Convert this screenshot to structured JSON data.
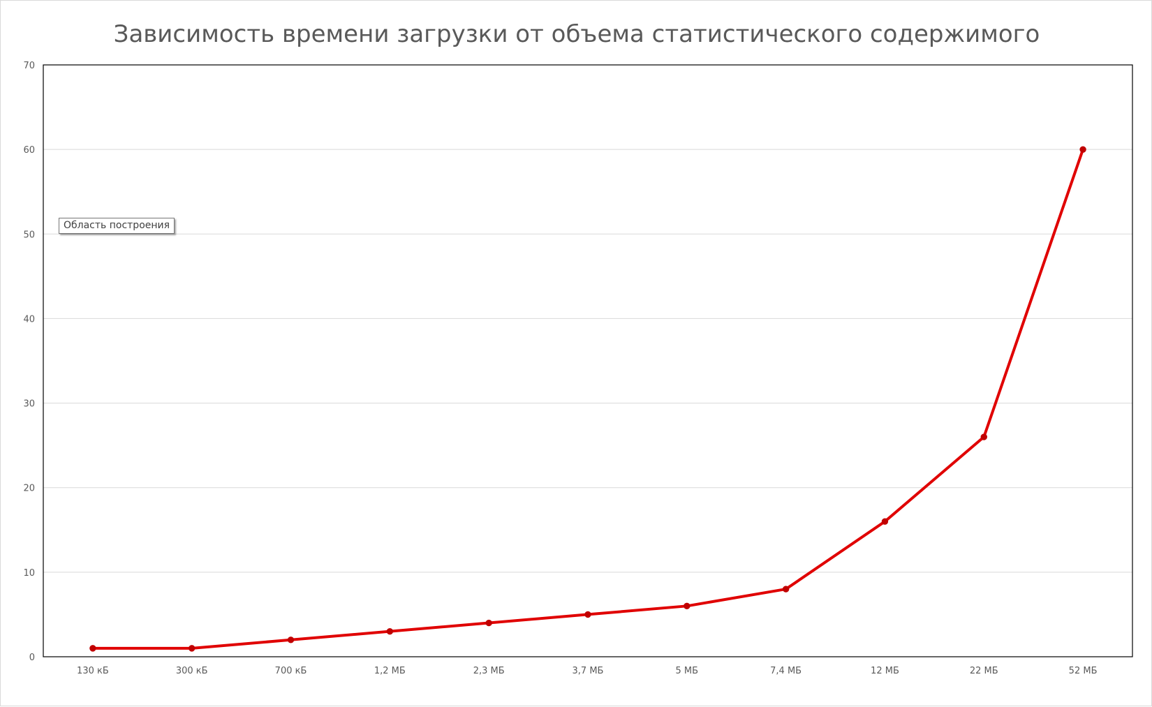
{
  "chart_data": {
    "type": "line",
    "title": "Зависимость времени загрузки от объема статистического содержимого",
    "xlabel": "",
    "ylabel": "",
    "categories": [
      "130 кБ",
      "300 кБ",
      "700 кБ",
      "1,2 МБ",
      "2,3 МБ",
      "3,7 МБ",
      "5 МБ",
      "7,4 МБ",
      "12 МБ",
      "22 МБ",
      "52 МБ"
    ],
    "series": [
      {
        "values": [
          1,
          1,
          2,
          3,
          4,
          5,
          6,
          8,
          16,
          26,
          60
        ],
        "color": "#e00000",
        "marker_color": "#c00000"
      }
    ],
    "ylim": [
      0,
      70
    ],
    "yticks": [
      0,
      10,
      20,
      30,
      40,
      50,
      60,
      70
    ],
    "grid": true,
    "legend": "none"
  },
  "tooltip": {
    "text": "Область построения"
  },
  "colors": {
    "title": "#595959",
    "tick_labels": "#595959",
    "gridlines": "#d9d9d9",
    "plot_border": "#000000"
  }
}
